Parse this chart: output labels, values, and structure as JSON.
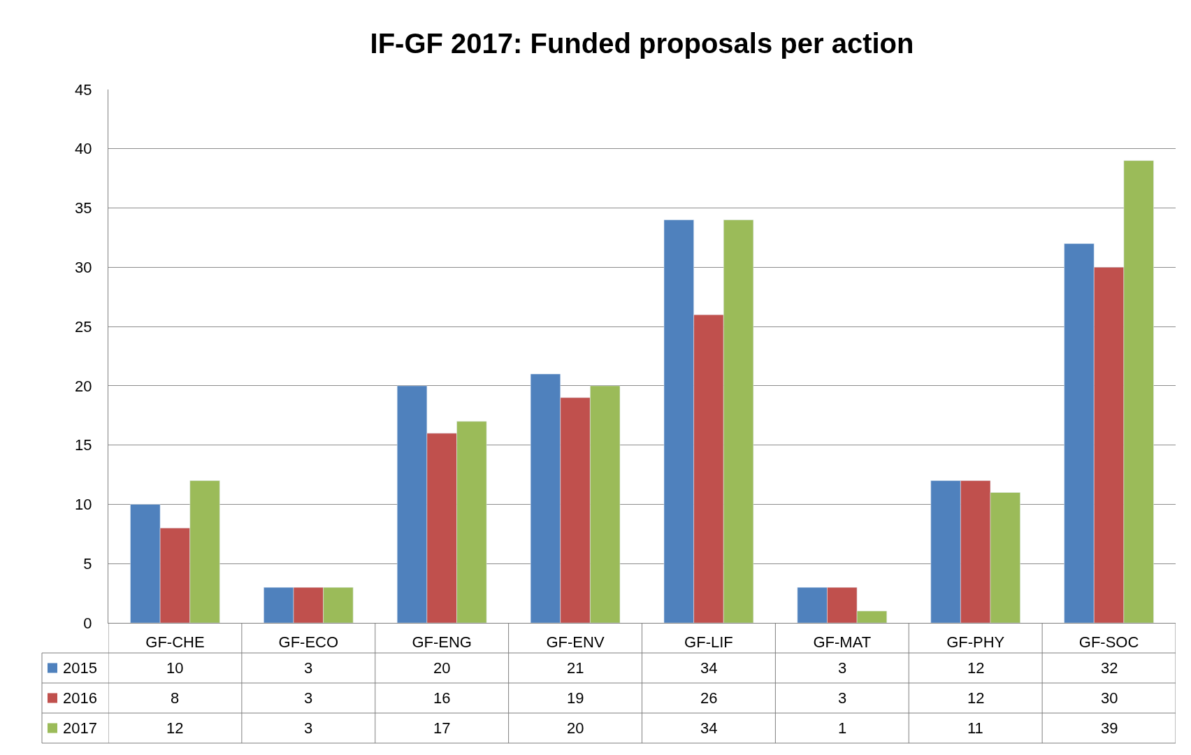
{
  "chart_data": {
    "type": "bar",
    "title": "IF-GF 2017: Funded proposals per action",
    "categories": [
      "GF-CHE",
      "GF-ECO",
      "GF-ENG",
      "GF-ENV",
      "GF-LIF",
      "GF-MAT",
      "GF-PHY",
      "GF-SOC"
    ],
    "series": [
      {
        "name": "2015",
        "color": "#4f81bd",
        "values": [
          10,
          3,
          20,
          21,
          34,
          3,
          12,
          32
        ]
      },
      {
        "name": "2016",
        "color": "#c0504d",
        "values": [
          8,
          3,
          16,
          19,
          26,
          3,
          12,
          30
        ]
      },
      {
        "name": "2017",
        "color": "#9bbb59",
        "values": [
          12,
          3,
          17,
          20,
          34,
          1,
          11,
          39
        ]
      }
    ],
    "ylim": [
      0,
      45
    ],
    "yticks": [
      0,
      5,
      10,
      15,
      20,
      25,
      30,
      35,
      40,
      45
    ],
    "grid": "y",
    "legend": "bottom left",
    "data_labels": true
  }
}
